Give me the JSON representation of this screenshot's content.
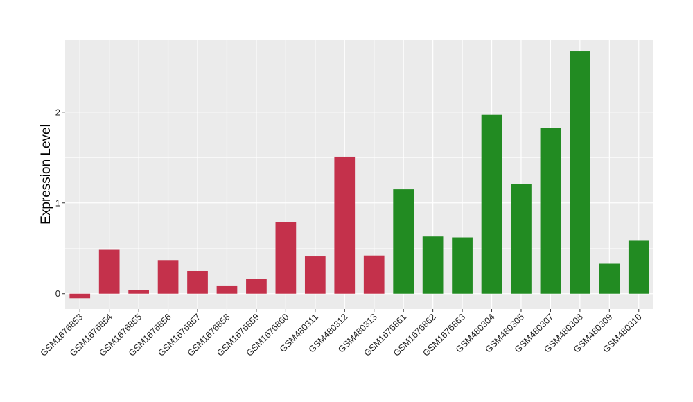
{
  "chart_data": {
    "type": "bar",
    "title": "",
    "xlabel": "",
    "ylabel": "Expression Level",
    "ylim": [
      -0.17,
      2.8
    ],
    "yticks": [
      0,
      1,
      2
    ],
    "grid": true,
    "legend": "none",
    "categories": [
      "GSM1676853",
      "GSM1676854",
      "GSM1676855",
      "GSM1676856",
      "GSM1676857",
      "GSM1676858",
      "GSM1676859",
      "GSM1676860",
      "GSM480311",
      "GSM480312",
      "GSM480313",
      "GSM1676861",
      "GSM1676862",
      "GSM1676863",
      "GSM480304",
      "GSM480305",
      "GSM480307",
      "GSM480308",
      "GSM480309",
      "GSM480310"
    ],
    "values": [
      -0.05,
      0.49,
      0.04,
      0.37,
      0.25,
      0.09,
      0.16,
      0.79,
      0.41,
      1.51,
      0.42,
      1.15,
      0.63,
      0.62,
      1.97,
      1.21,
      1.83,
      2.67,
      0.33,
      0.59
    ],
    "group_of_bar": [
      0,
      0,
      0,
      0,
      0,
      0,
      0,
      0,
      0,
      0,
      0,
      1,
      1,
      1,
      1,
      1,
      1,
      1,
      1,
      1
    ],
    "group_colors": [
      "#C4314B",
      "#228B22"
    ],
    "panel_color": "#EBEBEB",
    "grid_color": "#FFFFFF"
  }
}
